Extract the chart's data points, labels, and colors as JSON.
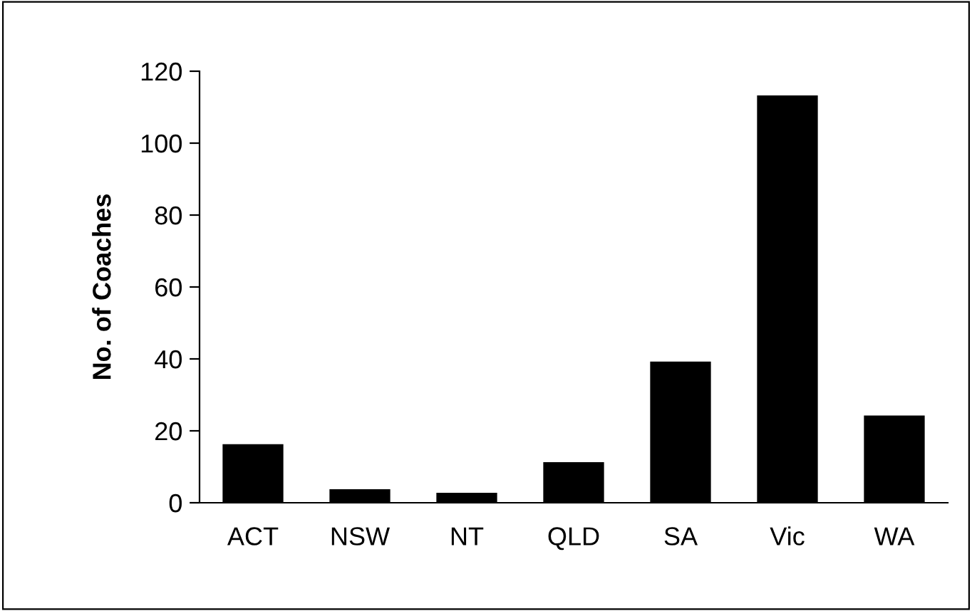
{
  "chart_data": {
    "type": "bar",
    "ylabel": "No. of Coaches",
    "categories": [
      "ACT",
      "NSW",
      "NT",
      "QLD",
      "SA",
      "Vic",
      "WA"
    ],
    "values": [
      16,
      3.5,
      2.5,
      11,
      39,
      113,
      24
    ],
    "color": "#000000",
    "ylim": [
      0,
      120
    ],
    "yticks": [
      0,
      20,
      40,
      60,
      80,
      100,
      120
    ],
    "grid": false,
    "legend": false
  }
}
